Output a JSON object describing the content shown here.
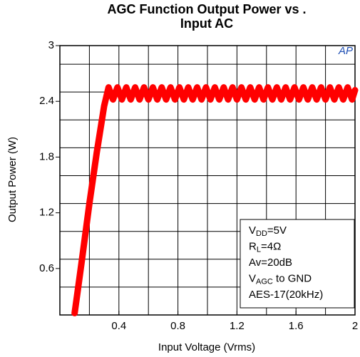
{
  "chart_data": {
    "type": "line",
    "title": [
      "AGC Function Output Power vs .",
      "Input  AC"
    ],
    "x_label": "Input Voltage (Vrms)",
    "y_label": "Output Power (W)",
    "logo": "AP",
    "xlim": [
      0,
      2
    ],
    "ylim": [
      0.1,
      3
    ],
    "xticks": [
      0.4,
      0.8,
      1.2,
      1.6,
      2
    ],
    "yticks": [
      0.6,
      1.2,
      1.8,
      2.4,
      3
    ],
    "xgrid": [
      0.2,
      0.4,
      0.6,
      0.8,
      1.0,
      1.2,
      1.4,
      1.6,
      1.8
    ],
    "ygrid": [
      0.4,
      0.7,
      1.0,
      1.3,
      1.6,
      1.9,
      2.2,
      2.5,
      2.8
    ],
    "grid": true,
    "annotations": [
      {
        "main": "V",
        "sub": "DD",
        "tail": "=5V"
      },
      {
        "main": "R",
        "sub": "L",
        "tail": "=4Ω"
      },
      {
        "main": "Av=20dB"
      },
      {
        "main": "V",
        "sub": "AGC",
        "tail": " to GND"
      },
      {
        "main": "AES-17(20kHz)"
      }
    ],
    "series": [
      {
        "color": "#ff0000",
        "x": [
          0.1,
          0.12,
          0.15,
          0.2,
          0.25,
          0.3,
          0.33,
          0.36,
          0.39,
          0.42,
          0.45,
          0.48,
          0.51,
          0.54,
          0.57,
          0.6,
          0.63,
          0.66,
          0.69,
          0.72,
          0.75,
          0.78,
          0.81,
          0.84,
          0.87,
          0.9,
          0.93,
          0.96,
          0.99,
          1.02,
          1.05,
          1.08,
          1.11,
          1.14,
          1.17,
          1.2,
          1.23,
          1.26,
          1.29,
          1.32,
          1.35,
          1.38,
          1.41,
          1.44,
          1.47,
          1.5,
          1.53,
          1.56,
          1.59,
          1.62,
          1.65,
          1.68,
          1.71,
          1.74,
          1.77,
          1.8,
          1.83,
          1.86,
          1.89,
          1.92,
          1.95,
          1.98,
          2.0
        ],
        "values": [
          0.12,
          0.35,
          0.7,
          1.3,
          1.85,
          2.35,
          2.55,
          2.42,
          2.55,
          2.42,
          2.55,
          2.42,
          2.55,
          2.42,
          2.55,
          2.42,
          2.55,
          2.42,
          2.55,
          2.42,
          2.55,
          2.42,
          2.55,
          2.42,
          2.55,
          2.42,
          2.55,
          2.42,
          2.55,
          2.42,
          2.55,
          2.42,
          2.55,
          2.42,
          2.55,
          2.42,
          2.55,
          2.42,
          2.55,
          2.42,
          2.55,
          2.42,
          2.55,
          2.42,
          2.55,
          2.42,
          2.55,
          2.42,
          2.55,
          2.42,
          2.55,
          2.42,
          2.55,
          2.42,
          2.55,
          2.42,
          2.55,
          2.42,
          2.55,
          2.42,
          2.55,
          2.42,
          2.52
        ]
      }
    ]
  }
}
